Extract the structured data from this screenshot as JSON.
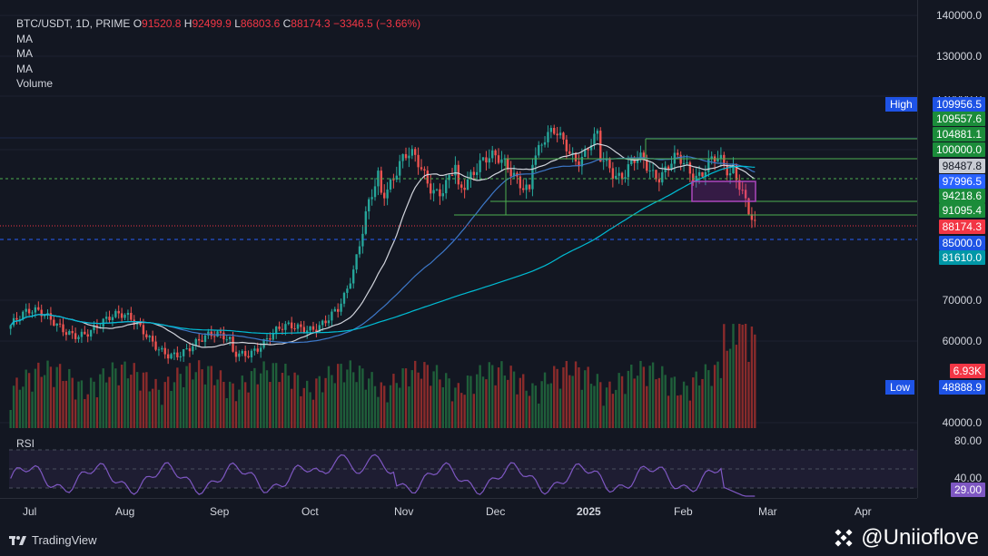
{
  "legend": {
    "symbol": "BTC/USDT, 1D, PRIME",
    "open_label": "O",
    "open": "91520.8",
    "high_label": "H",
    "high": "92499.9",
    "low_label": "L",
    "low": "86803.6",
    "close_label": "C",
    "close": "88174.3",
    "change": "−3346.5 (−3.66%)",
    "indicators": [
      "MA",
      "MA",
      "MA",
      "Volume"
    ]
  },
  "price_axis": {
    "ticks": [
      "140000.0",
      "130000.0",
      "120000.0",
      "70000.0",
      "60000.0",
      "40000.0"
    ],
    "badges": [
      {
        "label": "109956.5",
        "color": "#2962ff"
      },
      {
        "label": "109557.6",
        "color": "#22ab94"
      },
      {
        "label": "104881.1",
        "color": "#22ab94"
      },
      {
        "label": "100000.0",
        "color": "#22ab94"
      },
      {
        "label": "98487.8",
        "color": "#b2b5be"
      },
      {
        "label": "97996.5",
        "color": "#2962ff"
      },
      {
        "label": "94218.6",
        "color": "#22ab94"
      },
      {
        "label": "91095.4",
        "color": "#22ab94"
      },
      {
        "label": "88174.3",
        "color": "#f23645"
      },
      {
        "label": "85000.0",
        "color": "#2962ff"
      },
      {
        "label": "81610.0",
        "color": "#00bcd4"
      },
      {
        "label": "6.93K",
        "color": "#f23645"
      },
      {
        "label": "48888.9",
        "color": "#2962ff"
      }
    ],
    "high_tag": "High",
    "low_tag": "Low"
  },
  "rsi": {
    "title": "RSI",
    "ticks": [
      "80.00",
      "40.00"
    ],
    "value": "29.00",
    "value_color": "#7e57c2"
  },
  "time_axis": {
    "labels": [
      "Jul",
      "Aug",
      "Sep",
      "Oct",
      "Nov",
      "Dec",
      "2025",
      "Feb",
      "Mar",
      "Apr"
    ]
  },
  "footer": {
    "brand": "TradingView",
    "watermark": "@Uniioflove"
  },
  "colors": {
    "up": "#26a69a",
    "down": "#ef5350",
    "background": "#131722",
    "ma_fast": "#d1d4dc",
    "ma_mid": "#2962ff",
    "ma_slow": "#00bcd4",
    "rsi": "#7e57c2",
    "levels": "#4caf50"
  },
  "chart_data": {
    "type": "candlestick",
    "interval": "1D",
    "y_axis_prices": [
      140000,
      130000,
      120000,
      70000,
      60000,
      40000
    ],
    "levels": [
      109557.6,
      104881.1,
      100000.0,
      94218.6,
      91095.4
    ],
    "dashed_levels": [
      97996.5,
      85000.0
    ],
    "current_price": 88174.3,
    "volume_last": "6.93K",
    "rsi_last": 29.0,
    "rsi_bands": [
      80,
      40
    ]
  }
}
